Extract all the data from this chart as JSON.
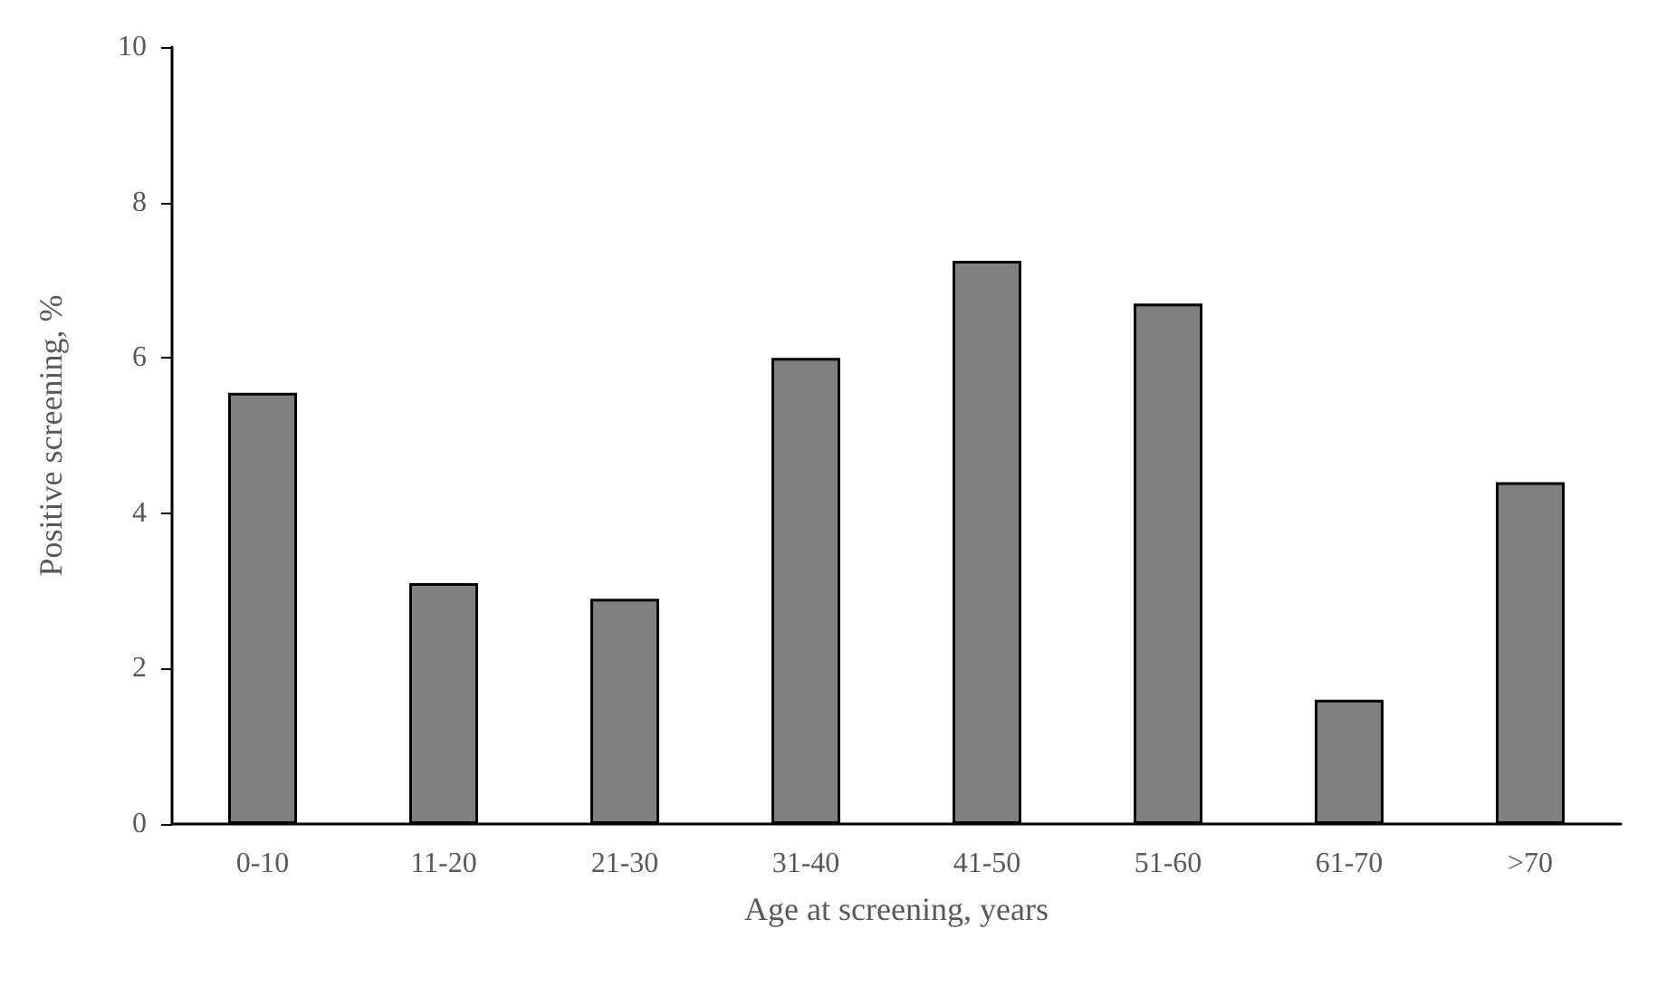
{
  "chart_data": {
    "type": "bar",
    "xlabel": "Age at screening, years",
    "ylabel": "Positive screening, %",
    "categories": [
      "0-10",
      "11-20",
      "21-30",
      "31-40",
      "41-50",
      "51-60",
      "61-70",
      ">70"
    ],
    "values": [
      5.55,
      3.1,
      2.9,
      6.0,
      7.25,
      6.7,
      1.6,
      4.4
    ],
    "color": "#808080",
    "ylim": [
      0,
      10
    ],
    "yticks": [
      0,
      2,
      4,
      6,
      8,
      10
    ],
    "grid": false
  }
}
